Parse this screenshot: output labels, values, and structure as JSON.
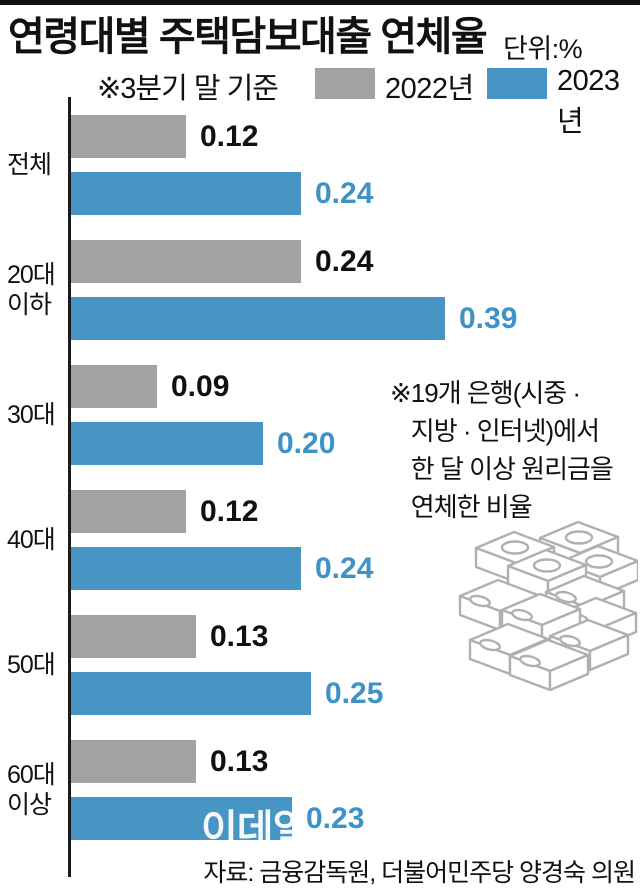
{
  "page": {
    "title": "연령대별 주택담보대출 연체율",
    "unit_label": "단위:%",
    "basis_note": "※3분기 말 기준",
    "legend": [
      {
        "label": "2022년",
        "color": "#a1a2a4"
      },
      {
        "label": "2023년",
        "color": "#4695c5"
      }
    ],
    "annotation": {
      "marker": "※",
      "lines": [
        "19개 은행(시중 ·",
        "지방 · 인터넷)에서",
        "한 달 이상 원리금을",
        "연체한 비율"
      ]
    },
    "source": "자료: 금융감독원, 더불어민주당 양경숙 의원",
    "watermark": "이데일리",
    "colors": {
      "bar_2022": "#a1a2a4",
      "bar_2023": "#4695c5",
      "value_2022": "#111111",
      "value_2023": "#3f92c6",
      "axis": "#1b1b1b",
      "top_rule": "#111111",
      "illustration_outline": "#aeb0b3"
    }
  },
  "chart_data": {
    "type": "bar",
    "orientation": "horizontal",
    "title": "연령대별 주택담보대출 연체율",
    "unit": "%",
    "basis": "3분기 말 기준",
    "categories": [
      "전체",
      "20대 이하",
      "30대",
      "40대",
      "50대",
      "60대 이상"
    ],
    "series": [
      {
        "name": "2022년",
        "color": "#a1a2a4",
        "values": [
          0.12,
          0.24,
          0.09,
          0.12,
          0.13,
          0.13
        ]
      },
      {
        "name": "2023년",
        "color": "#4695c5",
        "values": [
          0.24,
          0.39,
          0.2,
          0.24,
          0.25,
          0.23
        ]
      }
    ],
    "xlim": [
      0,
      0.4
    ],
    "value_labels": true,
    "value_format": "2dp",
    "legend_position": "top",
    "grid": false
  }
}
